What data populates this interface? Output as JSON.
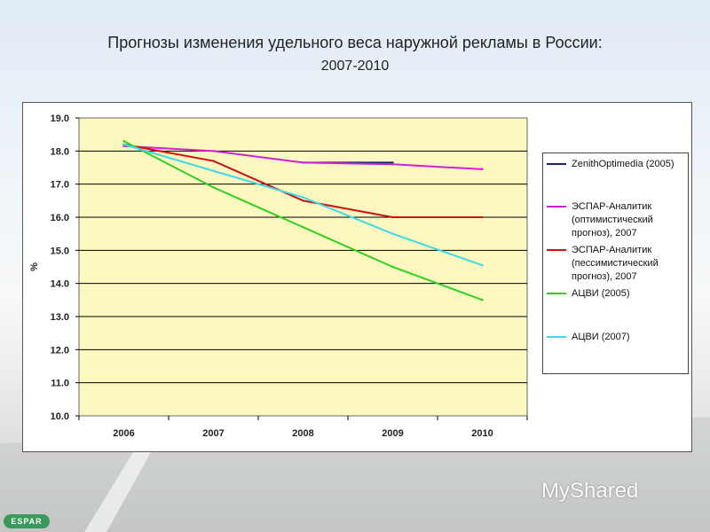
{
  "header": {
    "title": "Прогнозы изменения удельного веса наружной рекламы в России:",
    "subtitle": "2007-2010"
  },
  "chart_data": {
    "type": "line",
    "ylabel": "%",
    "ylim": [
      10.0,
      19.0
    ],
    "yticks": [
      "10.0",
      "11.0",
      "12.0",
      "13.0",
      "14.0",
      "15.0",
      "16.0",
      "17.0",
      "18.0",
      "19.0"
    ],
    "x": [
      "2006",
      "2007",
      "2008",
      "2009",
      "2010"
    ],
    "grid": true,
    "legend_position": "right",
    "series": [
      {
        "name": "ZenithOptimedia (2005)",
        "color": "#1a2070",
        "x": [
          "2008",
          "2009"
        ],
        "values": [
          17.65,
          17.65
        ]
      },
      {
        "name": "ЭСПАР-Аналитик (оптимистический прогноз), 2007",
        "color": "#d020d0",
        "x": [
          "2006",
          "2007",
          "2008",
          "2009",
          "2010"
        ],
        "values": [
          18.15,
          18.0,
          17.65,
          17.6,
          17.45
        ]
      },
      {
        "name": "ЭСПАР-Аналитик (пессимистический прогноз), 2007",
        "color": "#cc1010",
        "x": [
          "2006",
          "2007",
          "2008",
          "2009",
          "2010"
        ],
        "values": [
          18.2,
          17.7,
          16.5,
          16.0,
          16.0
        ]
      },
      {
        "name": "АЦВИ (2005)",
        "color": "#30d020",
        "x": [
          "2006",
          "2007",
          "2008",
          "2009",
          "2010"
        ],
        "values": [
          18.3,
          16.9,
          15.7,
          14.5,
          13.5
        ]
      },
      {
        "name": "АЦВИ (2007)",
        "color": "#40d8e8",
        "x": [
          "2006",
          "2007",
          "2008",
          "2009",
          "2010"
        ],
        "values": [
          18.2,
          17.4,
          16.6,
          15.5,
          14.55
        ]
      }
    ]
  },
  "legend": {
    "items": [
      "ZenithOptimedia (2005)",
      "ЭСПАР-Аналитик (оптимистический прогноз), 2007",
      "ЭСПАР-Аналитик (пессимистический прогноз), 2007",
      "АЦВИ (2005)",
      "АЦВИ (2007)"
    ]
  },
  "logos": {
    "espar": "ESPAR",
    "myshared": "MyShared"
  }
}
